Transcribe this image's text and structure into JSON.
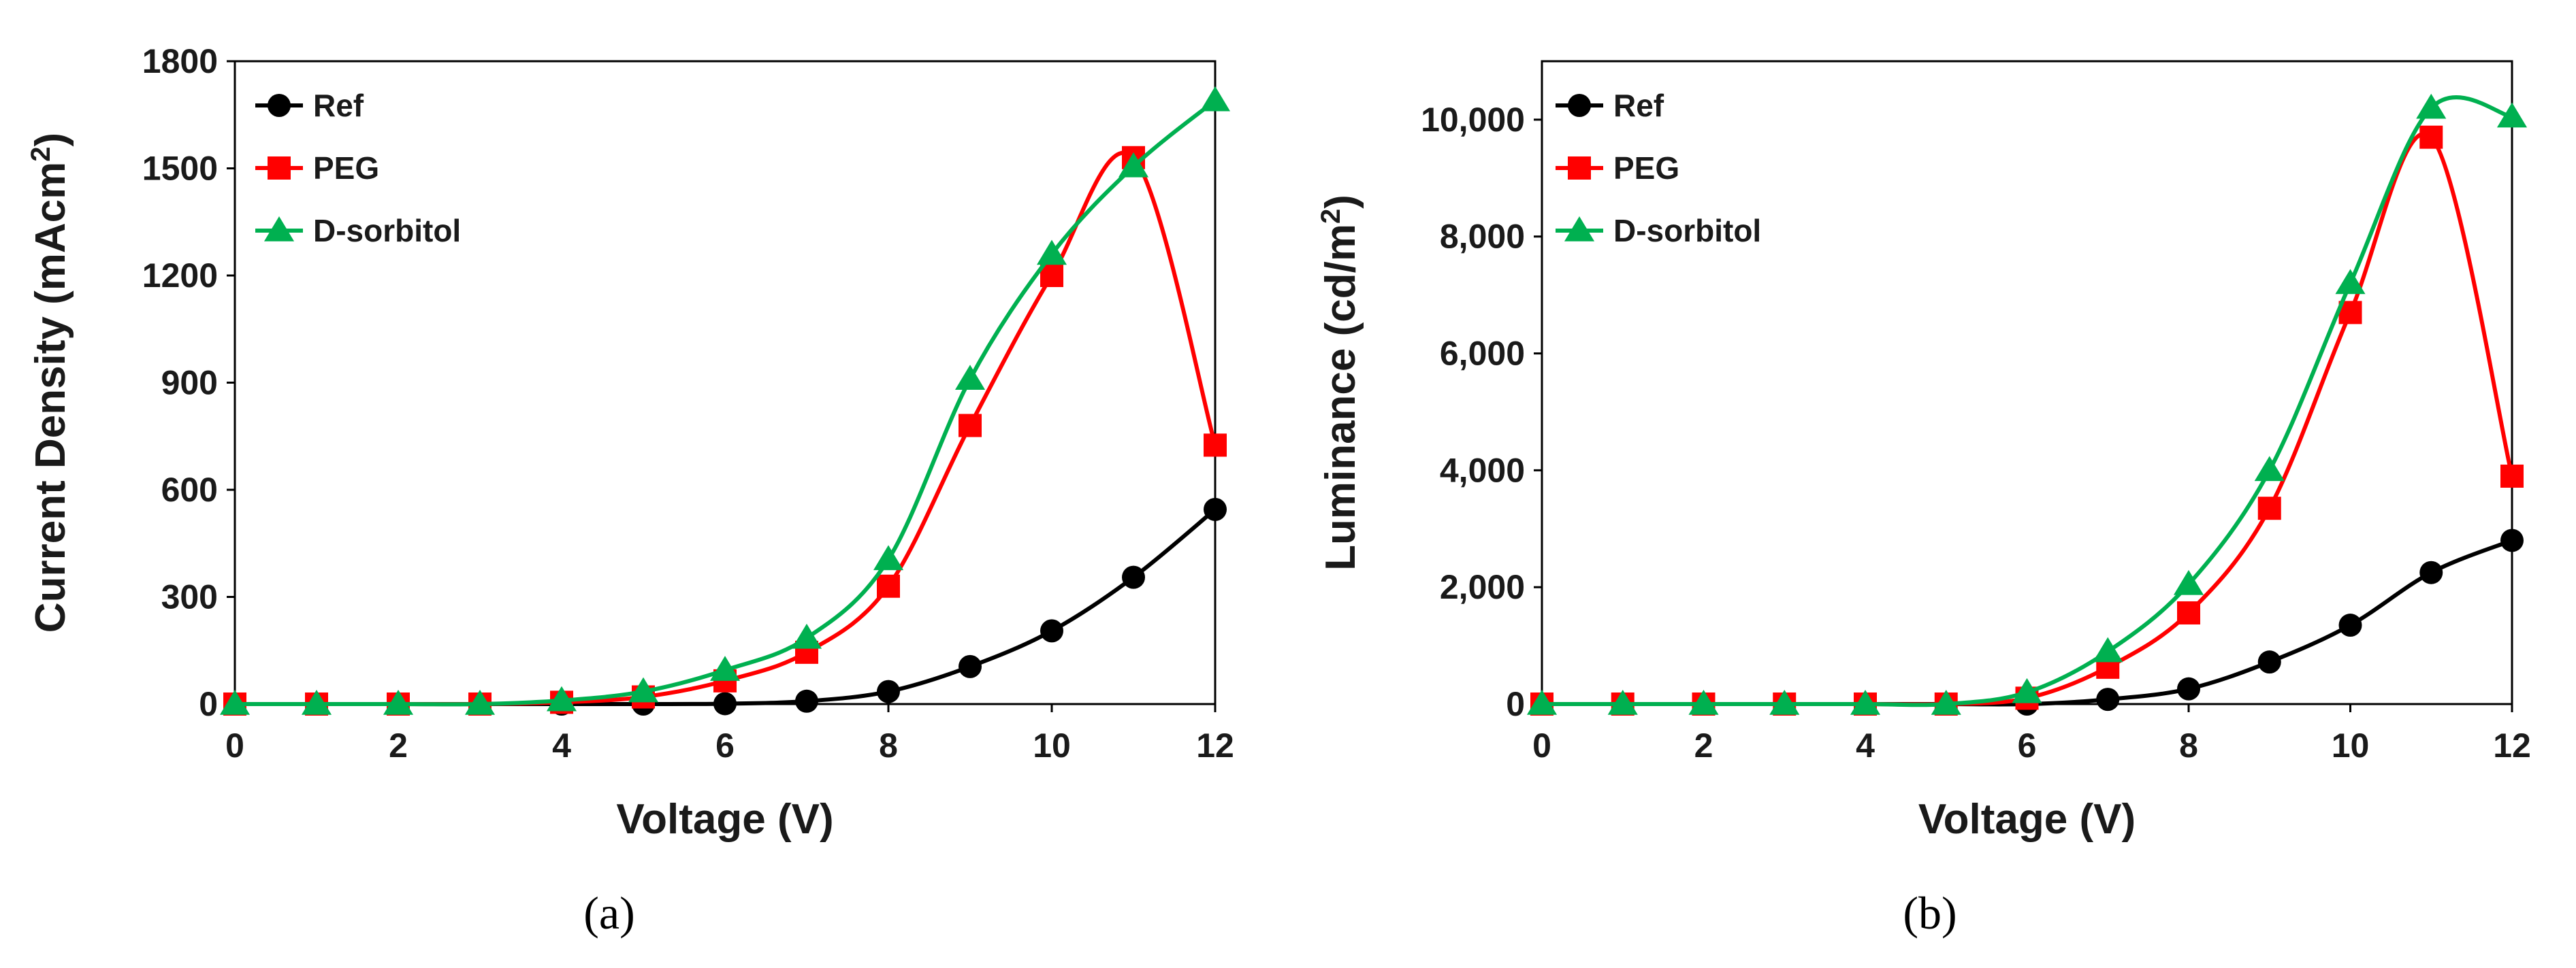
{
  "chart_data": [
    {
      "id": "a",
      "type": "line",
      "caption": "(a)",
      "xlabel": "Voltage (V)",
      "ylabel_main": "Current Density (mAcm",
      "ylabel_sup": "2",
      "ylabel_end": ")",
      "xlim": [
        0,
        12
      ],
      "ylim": [
        0,
        1800
      ],
      "xticks": [
        0,
        2,
        4,
        6,
        8,
        10,
        12
      ],
      "yticks": [
        0,
        300,
        600,
        900,
        1200,
        1500,
        1800
      ],
      "ytick_labels": [
        "0",
        "300",
        "600",
        "900",
        "1200",
        "1500",
        "1800"
      ],
      "legend_position": "top-left",
      "x": [
        0,
        1,
        2,
        3,
        4,
        5,
        6,
        7,
        8,
        9,
        10,
        11,
        12
      ],
      "series": [
        {
          "name": "Ref",
          "color": "#000000",
          "marker": "circle",
          "values": [
            0,
            0,
            0,
            0,
            0,
            0,
            1,
            8,
            35,
            105,
            205,
            355,
            545
          ]
        },
        {
          "name": "PEG",
          "color": "#ff0000",
          "marker": "square",
          "values": [
            0,
            0,
            0,
            0,
            5,
            20,
            65,
            145,
            330,
            780,
            1200,
            1530,
            725
          ]
        },
        {
          "name": "D-sorbitol",
          "color": "#00b050",
          "marker": "triangle",
          "values": [
            0,
            0,
            0,
            0,
            10,
            35,
            95,
            185,
            405,
            910,
            1260,
            1505,
            1690
          ]
        }
      ]
    },
    {
      "id": "b",
      "type": "line",
      "caption": "(b)",
      "xlabel": "Voltage (V)",
      "ylabel_main": "Luminance (cd/m",
      "ylabel_sup": "2",
      "ylabel_end": ")",
      "xlim": [
        0,
        12
      ],
      "ylim": [
        0,
        11000
      ],
      "xticks": [
        0,
        2,
        4,
        6,
        8,
        10,
        12
      ],
      "yticks": [
        0,
        2000,
        4000,
        6000,
        8000,
        10000
      ],
      "ytick_labels": [
        "0",
        "2,000",
        "4,000",
        "6,000",
        "8,000",
        "10,000"
      ],
      "legend_position": "top-left",
      "x": [
        0,
        1,
        2,
        3,
        4,
        5,
        6,
        7,
        8,
        9,
        10,
        11,
        12
      ],
      "series": [
        {
          "name": "Ref",
          "color": "#000000",
          "marker": "circle",
          "values": [
            0,
            0,
            0,
            0,
            0,
            0,
            0,
            80,
            260,
            720,
            1350,
            2250,
            2800
          ]
        },
        {
          "name": "PEG",
          "color": "#ff0000",
          "marker": "square",
          "values": [
            0,
            0,
            0,
            0,
            0,
            0,
            100,
            630,
            1560,
            3350,
            6700,
            9700,
            3900
          ]
        },
        {
          "name": "D-sorbitol",
          "color": "#00b050",
          "marker": "triangle",
          "values": [
            0,
            0,
            0,
            0,
            0,
            0,
            200,
            900,
            2050,
            4000,
            7200,
            10200,
            10050
          ]
        }
      ]
    }
  ]
}
